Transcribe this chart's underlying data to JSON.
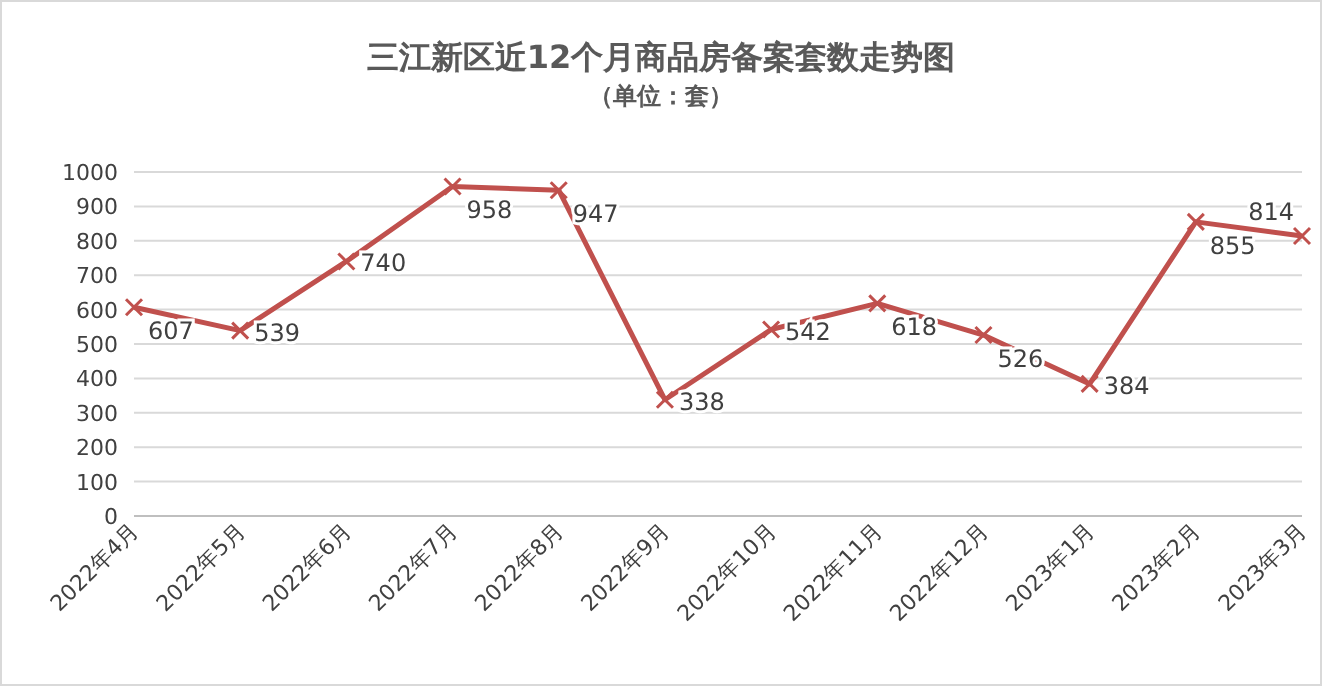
{
  "chart_data": {
    "type": "line",
    "title": "三江新区近12个月商品房备案套数走势图",
    "subtitle": "（单位：套）",
    "categories": [
      "2022年4月",
      "2022年5月",
      "2022年6月",
      "2022年7月",
      "2022年8月",
      "2022年9月",
      "2022年10月",
      "2022年11月",
      "2022年12月",
      "2023年1月",
      "2023年2月",
      "2023年3月"
    ],
    "series": [
      {
        "color": "#c0504d",
        "values": [
          607,
          539,
          740,
          958,
          947,
          338,
          542,
          618,
          526,
          384,
          855,
          814
        ]
      }
    ],
    "ylim": [
      0,
      1000
    ],
    "yticks": [
      0,
      100,
      200,
      300,
      400,
      500,
      600,
      700,
      800,
      900,
      1000
    ],
    "grid": "y",
    "marker": "cross",
    "data_labels": true
  }
}
